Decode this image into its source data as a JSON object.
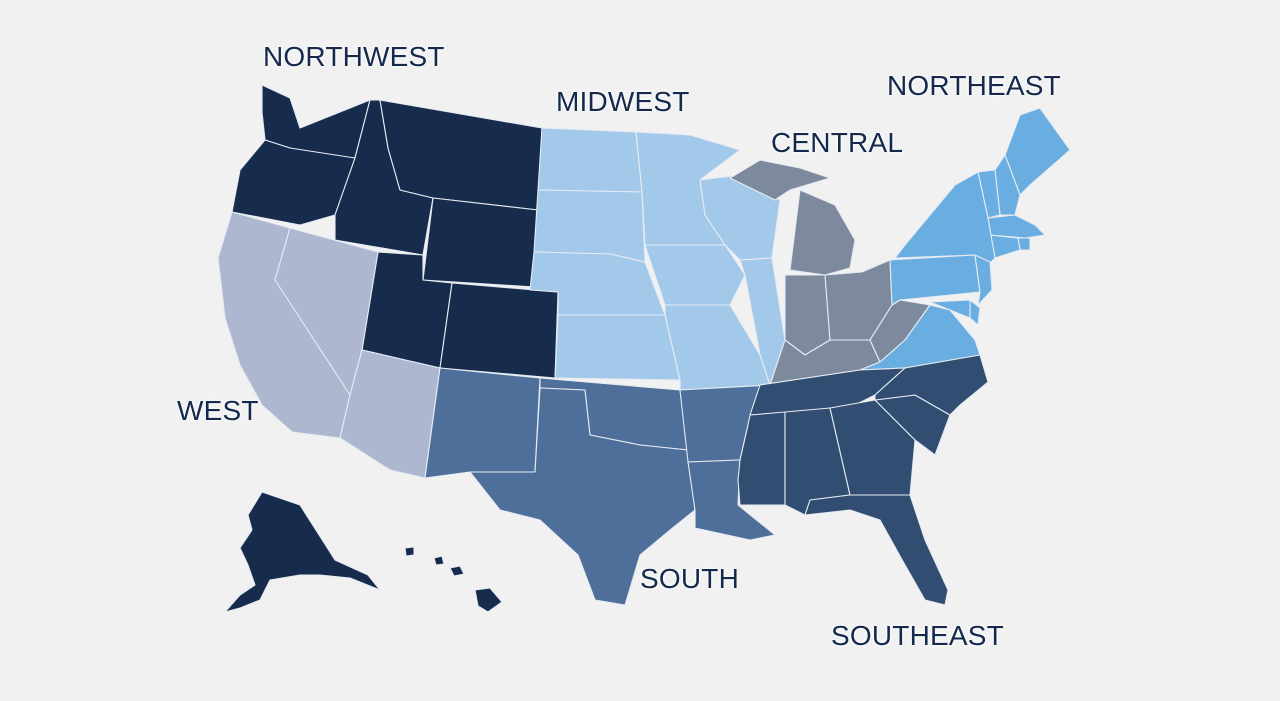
{
  "regions": [
    {
      "id": "northwest",
      "label": "NORTHWEST",
      "color": "#172b4d",
      "states": [
        "Washington",
        "Oregon",
        "Idaho",
        "Montana",
        "Wyoming",
        "Utah",
        "Colorado",
        "Alaska",
        "Hawaii"
      ]
    },
    {
      "id": "west",
      "label": "WEST",
      "color": "#adb8d0",
      "states": [
        "California",
        "Nevada",
        "Arizona"
      ]
    },
    {
      "id": "midwest",
      "label": "MIDWEST",
      "color": "#a3c9ea",
      "states": [
        "North Dakota",
        "South Dakota",
        "Nebraska",
        "Kansas",
        "Minnesota",
        "Iowa",
        "Missouri",
        "Wisconsin",
        "Illinois"
      ]
    },
    {
      "id": "central",
      "label": "CENTRAL",
      "color": "#7d8a9e",
      "states": [
        "Michigan",
        "Indiana",
        "Ohio",
        "Kentucky",
        "West Virginia"
      ]
    },
    {
      "id": "northeast",
      "label": "NORTHEAST",
      "color": "#6aaee1",
      "states": [
        "Maine",
        "New Hampshire",
        "Vermont",
        "Massachusetts",
        "Rhode Island",
        "Connecticut",
        "New York",
        "New Jersey",
        "Pennsylvania",
        "Delaware",
        "Maryland",
        "Virginia"
      ]
    },
    {
      "id": "south",
      "label": "SOUTH",
      "color": "#4f6f9b",
      "states": [
        "New Mexico",
        "Texas",
        "Oklahoma",
        "Arkansas",
        "Louisiana"
      ]
    },
    {
      "id": "southeast",
      "label": "SOUTHEAST",
      "color": "#324d72",
      "states": [
        "Tennessee",
        "Mississippi",
        "Alabama",
        "Georgia",
        "Florida",
        "South Carolina",
        "North Carolina"
      ]
    }
  ]
}
